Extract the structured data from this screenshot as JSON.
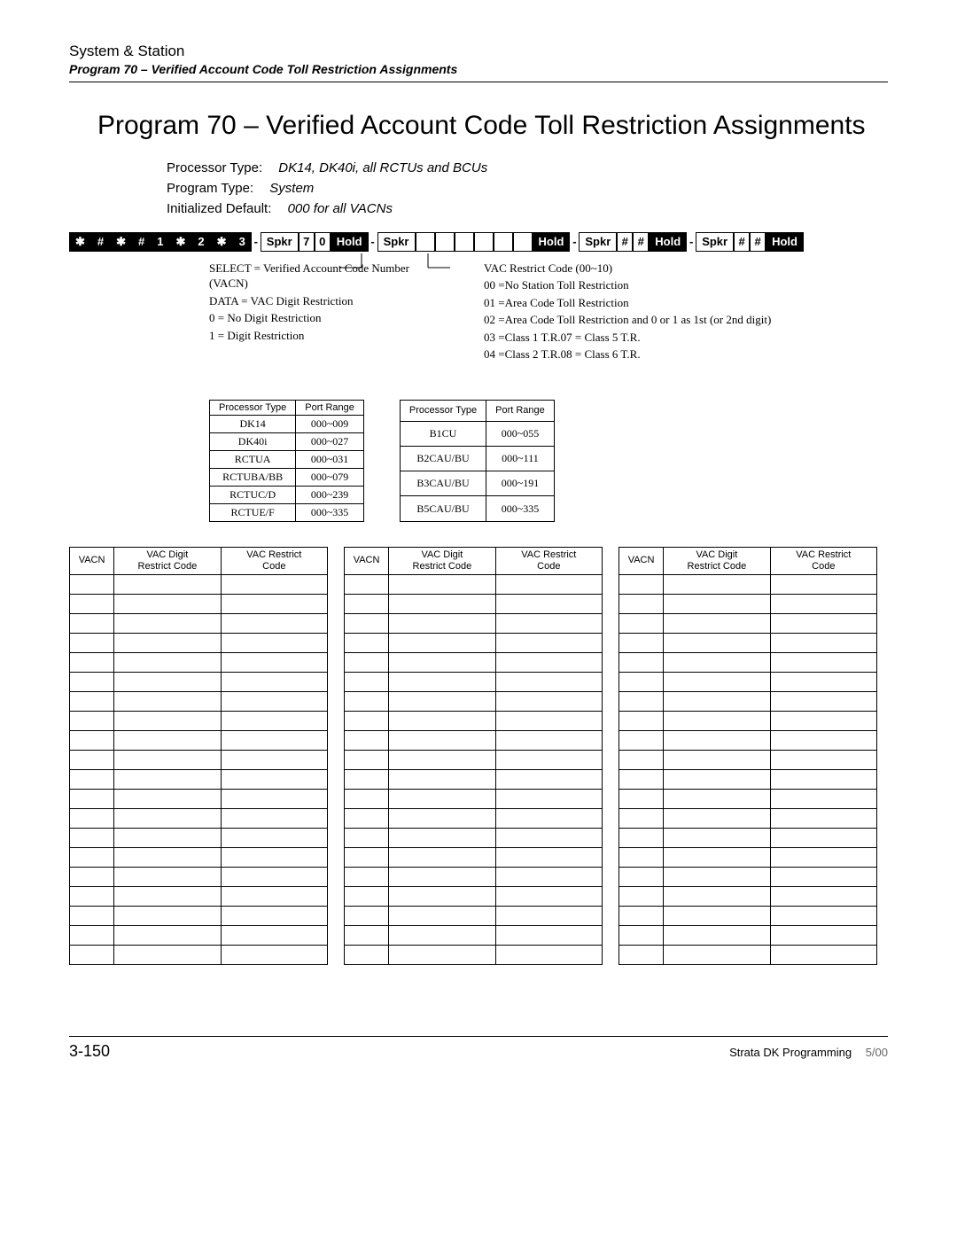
{
  "header": {
    "section": "System & Station",
    "subtitle": "Program 70 – Verified Account Code Toll Restriction Assignments"
  },
  "title": "Program 70  – Verified Account Code Toll Restriction Assignments",
  "meta": {
    "processor_type_label": "Processor Type:",
    "processor_type_val": "DK14, DK40i, all RCTUs and BCUs",
    "program_type_label": "Program Type:",
    "program_type_val": "System",
    "init_default_label": "Initialized Default:",
    "init_default_val": "000 for all VACNs"
  },
  "keyseq": [
    {
      "t": "✱",
      "k": "black"
    },
    {
      "t": "#",
      "k": "black"
    },
    {
      "t": "✱",
      "k": "black"
    },
    {
      "t": "#",
      "k": "black"
    },
    {
      "t": "1",
      "k": "black"
    },
    {
      "t": "✱",
      "k": "black"
    },
    {
      "t": "2",
      "k": "black"
    },
    {
      "t": "✱",
      "k": "black"
    },
    {
      "t": "3",
      "k": "black"
    },
    {
      "t": "-",
      "k": "dash"
    },
    {
      "t": "Spkr",
      "k": "white-wide"
    },
    {
      "t": "7",
      "k": "white"
    },
    {
      "t": "0",
      "k": "white"
    },
    {
      "t": "Hold",
      "k": "black-wide"
    },
    {
      "t": "-",
      "k": "dash"
    },
    {
      "t": "Spkr",
      "k": "white-wide"
    },
    {
      "t": "",
      "k": "blank"
    },
    {
      "t": "",
      "k": "blank"
    },
    {
      "t": "",
      "k": "blank"
    },
    {
      "t": "",
      "k": "blank"
    },
    {
      "t": "",
      "k": "blank"
    },
    {
      "t": "",
      "k": "blank"
    },
    {
      "t": "Hold",
      "k": "black-wide"
    },
    {
      "t": "-",
      "k": "dash"
    },
    {
      "t": "Spkr",
      "k": "white-wide"
    },
    {
      "t": "#",
      "k": "white"
    },
    {
      "t": "#",
      "k": "white"
    },
    {
      "t": "Hold",
      "k": "black-wide"
    },
    {
      "t": "-",
      "k": "dash"
    },
    {
      "t": "Spkr",
      "k": "white-wide"
    },
    {
      "t": "#",
      "k": "white"
    },
    {
      "t": "#",
      "k": "white"
    },
    {
      "t": "Hold",
      "k": "black-wide"
    }
  ],
  "anno_left": [
    "SELECT = Verified Account Code Number (VACN)",
    "DATA = VAC Digit Restriction",
    "0 = No Digit Restriction",
    "1 = Digit Restriction"
  ],
  "anno_right": [
    "VAC Restrict Code (00~10)",
    "00 =No Station Toll Restriction",
    "01 =Area Code Toll Restriction",
    "02 =Area Code Toll Restriction and 0 or 1 as 1st (or 2nd digit)",
    "03 =Class 1 T.R.07 = Class 5 T.R.",
    "04 =Class 2 T.R.08 = Class 6 T.R."
  ],
  "proc_table_headers": [
    "Processor Type",
    "Port Range"
  ],
  "proc_table_1": [
    [
      "DK14",
      "000~009"
    ],
    [
      "DK40i",
      "000~027"
    ],
    [
      "RCTUA",
      "000~031"
    ],
    [
      "RCTUBA/BB",
      "000~079"
    ],
    [
      "RCTUC/D",
      "000~239"
    ],
    [
      "RCTUE/F",
      "000~335"
    ]
  ],
  "proc_table_2": [
    [
      "B1CU",
      "000~055"
    ],
    [
      "B2CAU/BU",
      "000~111"
    ],
    [
      "B3CAU/BU",
      "000~191"
    ],
    [
      "B5CAU/BU",
      "000~335"
    ]
  ],
  "vacn_headers": [
    "VACN",
    "VAC Digit\nRestrict Code",
    "VAC Restrict\nCode"
  ],
  "vacn_row_count": 20,
  "footer": {
    "page": "3-150",
    "doc": "Strata DK Programming",
    "date": "5/00"
  }
}
